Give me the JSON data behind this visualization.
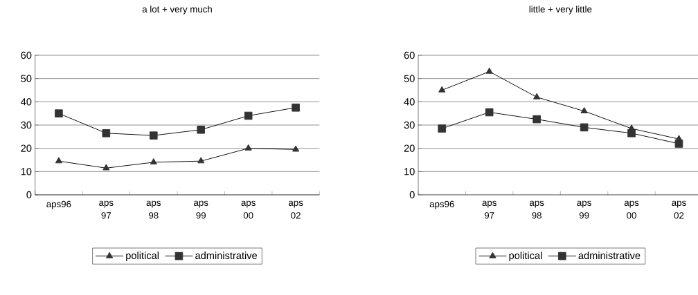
{
  "chart_data": [
    {
      "type": "line",
      "title": "a lot + very much",
      "categories": [
        "aps96",
        "aps 97",
        "aps 98",
        "aps 99",
        "aps 00",
        "aps 02"
      ],
      "series": [
        {
          "name": "political",
          "color": "#333333",
          "marker": "triangle",
          "values": [
            14.5,
            11.5,
            14,
            14.5,
            20,
            19.5
          ]
        },
        {
          "name": "administrative",
          "color": "#333333",
          "marker": "square",
          "values": [
            35,
            26.5,
            25.5,
            28,
            34,
            37.5
          ]
        }
      ],
      "ylim": [
        0,
        60
      ],
      "yticks": [
        0,
        10,
        20,
        30,
        40,
        50,
        60
      ],
      "grid": "y",
      "legend": "bottom"
    },
    {
      "type": "line",
      "title": "little + very little",
      "categories": [
        "aps96",
        "aps 97",
        "aps 98",
        "aps 99",
        "aps 00",
        "aps 02"
      ],
      "series": [
        {
          "name": "political",
          "color": "#333333",
          "marker": "triangle",
          "values": [
            45,
            53,
            42,
            36,
            28.5,
            24
          ]
        },
        {
          "name": "administrative",
          "color": "#333333",
          "marker": "square",
          "values": [
            28.5,
            35.5,
            32.5,
            29,
            26.5,
            22
          ]
        }
      ],
      "ylim": [
        0,
        60
      ],
      "yticks": [
        0,
        10,
        20,
        30,
        40,
        50,
        60
      ],
      "grid": "y",
      "legend": "bottom"
    }
  ]
}
